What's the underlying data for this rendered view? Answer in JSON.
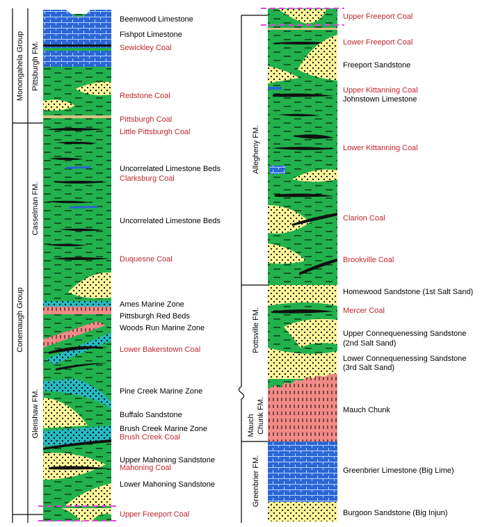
{
  "left_column": {
    "groups": [
      "Monongahela Group",
      "Conemaugh Group"
    ],
    "formations": [
      "Pittsburgh FM.",
      "Casselman FM.",
      "Glenshaw FM."
    ],
    "labels": [
      {
        "text": "Beenwood Limestone",
        "color": "#000000"
      },
      {
        "text": "Fishpot Limestone",
        "color": "#000000"
      },
      {
        "text": "Sewickley Coal",
        "color": "#c0262d"
      },
      {
        "text": "Redstone Coal",
        "color": "#c0262d"
      },
      {
        "text": "Pittsburgh Coal",
        "color": "#c0262d"
      },
      {
        "text": "Little Pittsburgh Coal",
        "color": "#c0262d"
      },
      {
        "text": "Uncorrelated Limestone Beds",
        "color": "#000000"
      },
      {
        "text": "Clarksburg Coal",
        "color": "#c0262d"
      },
      {
        "text": "Uncorrelated Limestone Beds",
        "color": "#000000"
      },
      {
        "text": "Duquesne Coal",
        "color": "#c0262d"
      },
      {
        "text": "Ames Marine Zone",
        "color": "#000000"
      },
      {
        "text": "Pittsburgh Red Beds",
        "color": "#000000"
      },
      {
        "text": "Woods Run Marine Zone",
        "color": "#000000"
      },
      {
        "text": "Lower Bakerstown Coal",
        "color": "#c0262d"
      },
      {
        "text": "Pine Creek Marine Zone",
        "color": "#000000"
      },
      {
        "text": "Buffalo Sandstone",
        "color": "#000000"
      },
      {
        "text": "Brush Creek Marine Zone",
        "color": "#000000"
      },
      {
        "text": "Brush Creek Coal",
        "color": "#c0262d"
      },
      {
        "text": "Upper Mahoning Sandstone",
        "color": "#000000"
      },
      {
        "text": "Mahoning Coal",
        "color": "#c0262d"
      },
      {
        "text": "Lower Mahoning Sandstone",
        "color": "#000000"
      },
      {
        "text": "Upper Freeport Coal",
        "color": "#c0262d"
      }
    ]
  },
  "right_column": {
    "formations": [
      "Allegheny FM.",
      "Pottsville FM.",
      "Mauch",
      "Chunk FM.",
      "Greenbrier FM."
    ],
    "labels": [
      {
        "text": "Upper Freeport Coal",
        "color": "#c0262d"
      },
      {
        "text": "Lower Freeport Coal",
        "color": "#c0262d"
      },
      {
        "text": "Freeport Sandstone",
        "color": "#000000"
      },
      {
        "text": "Upper Kittanning Coal",
        "color": "#c0262d"
      },
      {
        "text": "Johnstown Limestone",
        "color": "#000000"
      },
      {
        "text": "Lower Kittanning Coal",
        "color": "#c0262d"
      },
      {
        "text": "Clarion Coal",
        "color": "#c0262d"
      },
      {
        "text": "Brookville Coal",
        "color": "#c0262d"
      },
      {
        "text": "Homewood Sandstone (1st Salt Sand)",
        "color": "#000000"
      },
      {
        "text": "Mercer Coal",
        "color": "#c0262d"
      },
      {
        "text": "Upper Connequenessing Sandstone",
        "color": "#000000"
      },
      {
        "text": "(2nd Salt Sand)",
        "color": "#000000"
      },
      {
        "text": "Lower Connequenessing Sandstone",
        "color": "#000000"
      },
      {
        "text": "(3rd Salt Sand)",
        "color": "#000000"
      },
      {
        "text": "Mauch Chunk",
        "color": "#000000"
      },
      {
        "text": "Greenbrier Limestone (Big Lime)",
        "color": "#000000"
      },
      {
        "text": "Burgoon Sandstone (Big Injun)",
        "color": "#000000"
      }
    ]
  }
}
